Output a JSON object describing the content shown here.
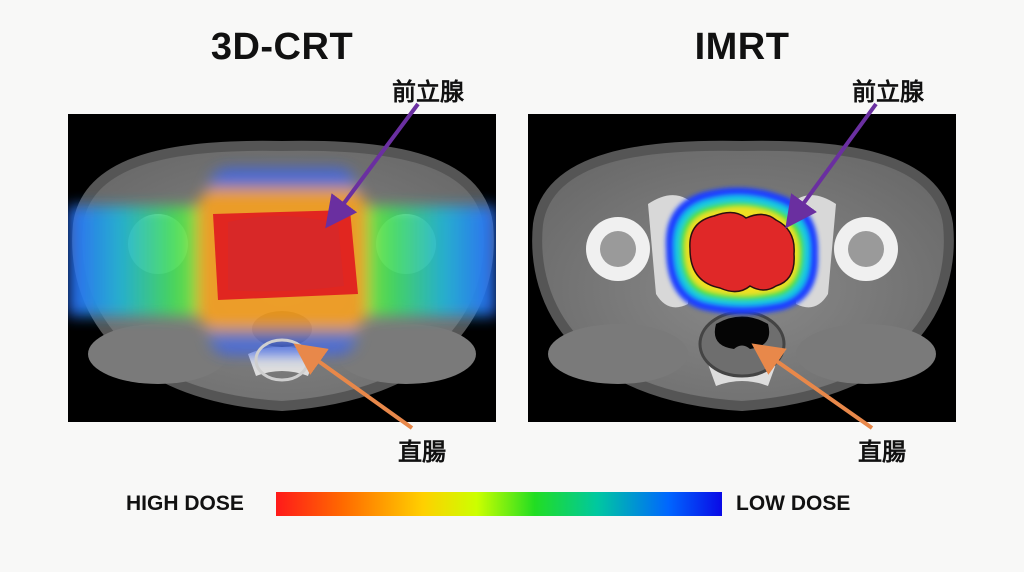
{
  "panels": {
    "left": {
      "title": "3D-CRT"
    },
    "right": {
      "title": "IMRT"
    }
  },
  "labels": {
    "prostate": "前立腺",
    "rectum": "直腸"
  },
  "legend": {
    "high_label": "HIGH DOSE",
    "low_label": "LOW DOSE",
    "colors": [
      "#ff1a1a",
      "#ff6a00",
      "#ffd000",
      "#ccff00",
      "#22dd22",
      "#00c8a0",
      "#0066ff",
      "#0a0ae6"
    ]
  },
  "arrow_colors": {
    "prostate": "#6a2fa0",
    "rectum": "#e8884a"
  }
}
